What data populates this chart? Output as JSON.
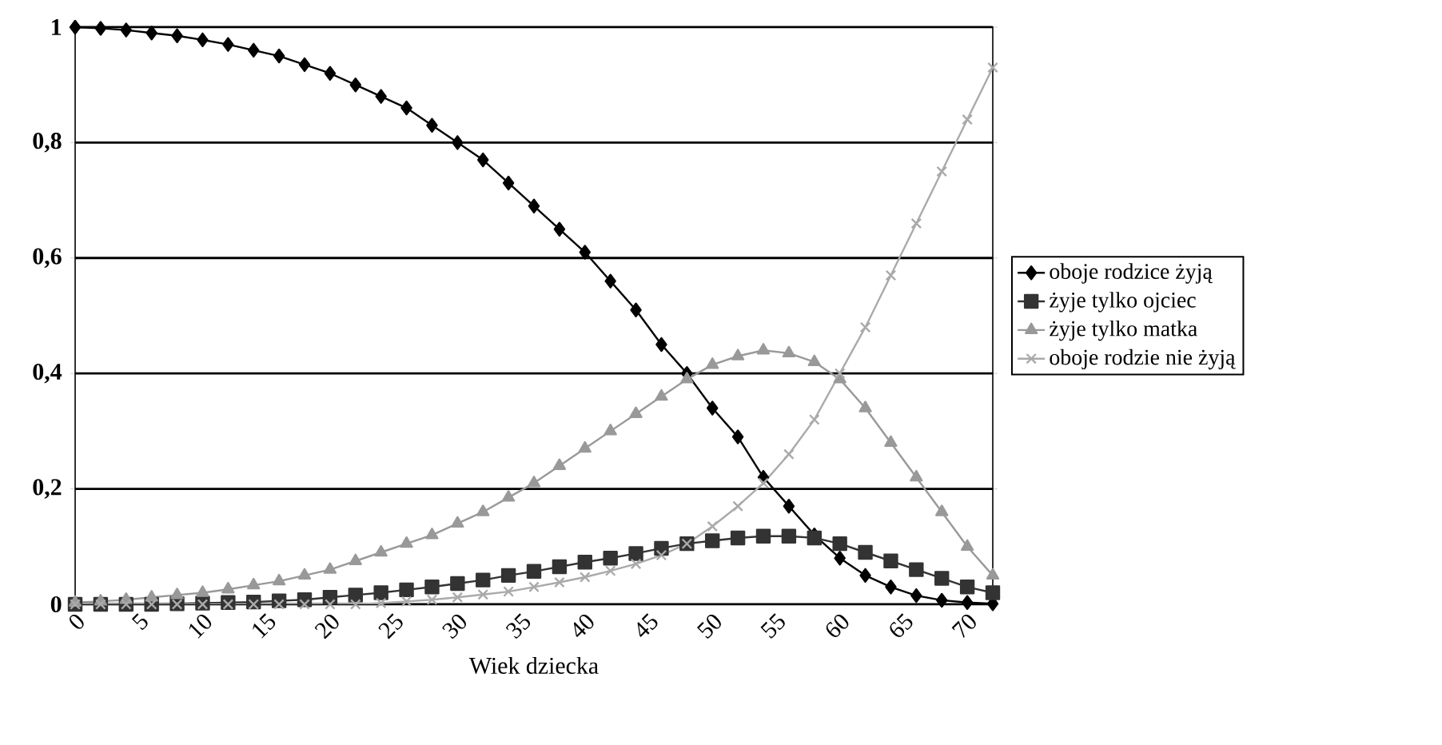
{
  "chart_data": {
    "type": "line",
    "xlabel": "Wiek dziecka",
    "x": [
      0,
      2,
      4,
      6,
      8,
      10,
      12,
      14,
      16,
      18,
      20,
      22,
      24,
      26,
      28,
      30,
      32,
      34,
      36,
      38,
      40,
      42,
      44,
      46,
      48,
      50,
      52,
      54,
      56,
      58,
      60,
      62,
      64,
      66,
      68,
      70,
      72
    ],
    "series": [
      {
        "name": "oboje rodzice żyją",
        "color": "#000000",
        "marker": "diamond",
        "values": [
          1,
          0.998,
          0.995,
          0.99,
          0.985,
          0.978,
          0.97,
          0.96,
          0.95,
          0.935,
          0.92,
          0.9,
          0.88,
          0.86,
          0.83,
          0.8,
          0.77,
          0.73,
          0.69,
          0.65,
          0.61,
          0.56,
          0.51,
          0.45,
          0.4,
          0.34,
          0.29,
          0.22,
          0.17,
          0.12,
          0.08,
          0.05,
          0.03,
          0.015,
          0.007,
          0.003,
          0.001
        ]
      },
      {
        "name": "żyje tylko ojciec",
        "color": "#333333",
        "marker": "square",
        "values": [
          0,
          0,
          0,
          0,
          0.001,
          0.002,
          0.003,
          0.004,
          0.006,
          0.008,
          0.012,
          0.016,
          0.02,
          0.025,
          0.03,
          0.036,
          0.042,
          0.05,
          0.057,
          0.065,
          0.073,
          0.08,
          0.088,
          0.097,
          0.105,
          0.11,
          0.115,
          0.118,
          0.118,
          0.115,
          0.105,
          0.09,
          0.075,
          0.06,
          0.045,
          0.03,
          0.02
        ]
      },
      {
        "name": "żyje tylko matka",
        "color": "#999999",
        "marker": "triangle",
        "values": [
          0.003,
          0.005,
          0.008,
          0.012,
          0.016,
          0.02,
          0.026,
          0.033,
          0.04,
          0.05,
          0.06,
          0.075,
          0.09,
          0.105,
          0.12,
          0.14,
          0.16,
          0.185,
          0.21,
          0.24,
          0.27,
          0.3,
          0.33,
          0.36,
          0.39,
          0.415,
          0.43,
          0.44,
          0.435,
          0.42,
          0.39,
          0.34,
          0.28,
          0.22,
          0.16,
          0.1,
          0.05
        ]
      },
      {
        "name": "oboje rodzie nie żyją",
        "color": "#aaaaaa",
        "marker": "cross",
        "values": [
          0,
          0,
          0,
          0,
          0,
          0,
          0,
          0,
          0,
          0,
          0,
          0,
          0.002,
          0.005,
          0.008,
          0.012,
          0.017,
          0.022,
          0.03,
          0.038,
          0.047,
          0.058,
          0.07,
          0.085,
          0.105,
          0.135,
          0.17,
          0.21,
          0.26,
          0.32,
          0.4,
          0.48,
          0.57,
          0.66,
          0.75,
          0.84,
          0.93
        ]
      }
    ],
    "xlim": [
      0,
      72
    ],
    "xticks": [
      0,
      5,
      10,
      15,
      20,
      25,
      30,
      35,
      40,
      45,
      50,
      55,
      60,
      65,
      70
    ],
    "ylim": [
      0,
      1
    ],
    "yticks": [
      0,
      {
        "value": 0.2,
        "label": "0,2"
      },
      {
        "value": 0.4,
        "label": "0,4"
      },
      {
        "value": 0.6,
        "label": "0,6"
      },
      {
        "value": 0.8,
        "label": "0,8"
      },
      1
    ],
    "grid": "y",
    "legend": "right"
  }
}
